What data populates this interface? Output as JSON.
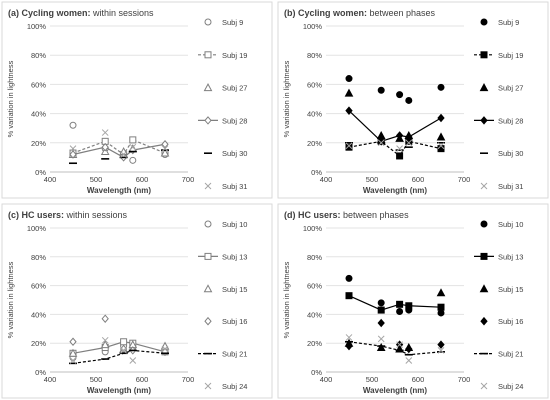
{
  "panels": [
    {
      "title_bold": "(a) Cycling women:",
      "title_rest": " within sessions"
    },
    {
      "title_bold": "(b) Cycling women:",
      "title_rest": " between phases"
    },
    {
      "title_bold": "(c) HC users:",
      "title_rest": "  within sessions"
    },
    {
      "title_bold": "(d) HC users:",
      "title_rest": " between phases"
    }
  ],
  "chart_data": [
    {
      "type": "line",
      "title": "(a) Cycling women: within sessions",
      "xlabel": "Wavelength (nm)",
      "ylabel": "% variation in lightness",
      "xlim": [
        400,
        700
      ],
      "ylim": [
        0,
        100
      ],
      "xticks": [
        "400",
        "500",
        "600",
        "700"
      ],
      "yticks": [
        "0%",
        "20%",
        "40%",
        "60%",
        "80%",
        "100%"
      ],
      "grid": "horizontal",
      "legend_position": "right",
      "series": [
        {
          "name": "Subj 9",
          "marker": "circle-open",
          "line": "none",
          "x": [
            450,
            520,
            560,
            580,
            650
          ],
          "y": [
            32,
            16,
            11,
            8,
            12
          ]
        },
        {
          "name": "Subj 19",
          "marker": "square-open",
          "line": "dashed",
          "x": [
            450,
            520,
            560,
            580,
            650
          ],
          "y": [
            13,
            21,
            12,
            22,
            13
          ]
        },
        {
          "name": "Subj 27",
          "marker": "triangle-open",
          "line": "none",
          "x": [
            450,
            520,
            560,
            580,
            650
          ],
          "y": [
            12,
            14,
            14,
            16,
            13
          ]
        },
        {
          "name": "Subj 28",
          "marker": "diamond-open",
          "line": "solid",
          "x": [
            450,
            520,
            560,
            580,
            650
          ],
          "y": [
            12,
            17,
            10,
            15,
            19
          ]
        },
        {
          "name": "Subj 30",
          "marker": "dash",
          "line": "none",
          "x": [
            450,
            520,
            560,
            580,
            650
          ],
          "y": [
            6,
            9,
            10,
            14,
            15
          ]
        },
        {
          "name": "Subj 31",
          "marker": "cross",
          "line": "none",
          "x": [
            450,
            520,
            560,
            580,
            650
          ],
          "y": [
            16,
            27,
            12,
            17,
            16
          ]
        }
      ]
    },
    {
      "type": "line",
      "title": "(b) Cycling women: between phases",
      "xlabel": "Wavelength (nm)",
      "ylabel": "% variation in lightness",
      "xlim": [
        400,
        700
      ],
      "ylim": [
        0,
        100
      ],
      "xticks": [
        "400",
        "500",
        "600",
        "700"
      ],
      "yticks": [
        "0%",
        "20%",
        "40%",
        "60%",
        "80%",
        "100%"
      ],
      "grid": "horizontal",
      "legend_position": "right",
      "series": [
        {
          "name": "Subj 9",
          "marker": "circle",
          "line": "none",
          "x": [
            450,
            520,
            560,
            580,
            650
          ],
          "y": [
            64,
            56,
            53,
            49,
            58
          ]
        },
        {
          "name": "Subj 19",
          "marker": "square",
          "line": "dashed",
          "x": [
            450,
            520,
            560,
            580,
            650
          ],
          "y": [
            17,
            21,
            11,
            21,
            16
          ]
        },
        {
          "name": "Subj 27",
          "marker": "triangle",
          "line": "none",
          "x": [
            450,
            520,
            560,
            580,
            650
          ],
          "y": [
            54,
            25,
            23,
            25,
            24
          ]
        },
        {
          "name": "Subj 28",
          "marker": "diamond",
          "line": "solid",
          "x": [
            450,
            520,
            560,
            580,
            650
          ],
          "y": [
            42,
            21,
            25,
            24,
            37
          ]
        },
        {
          "name": "Subj 30",
          "marker": "dash",
          "line": "none",
          "x": [
            450,
            520,
            560,
            580,
            650
          ],
          "y": [
            20,
            20,
            15,
            17,
            20
          ]
        },
        {
          "name": "Subj 31",
          "marker": "cross",
          "line": "none",
          "x": [
            450,
            520,
            560,
            580,
            650
          ],
          "y": [
            18,
            20,
            16,
            20,
            18
          ]
        }
      ]
    },
    {
      "type": "line",
      "title": "(c) HC users: within sessions",
      "xlabel": "Wavelength (nm)",
      "ylabel": "% variation in lightness",
      "xlim": [
        400,
        700
      ],
      "ylim": [
        0,
        100
      ],
      "xticks": [
        "400",
        "500",
        "600",
        "700"
      ],
      "yticks": [
        "0%",
        "20%",
        "40%",
        "60%",
        "80%",
        "100%"
      ],
      "grid": "horizontal",
      "legend_position": "right",
      "series": [
        {
          "name": "Subj 10",
          "marker": "circle-open",
          "line": "none",
          "x": [
            450,
            520,
            560,
            580,
            650
          ],
          "y": [
            10,
            14,
            18,
            17,
            16
          ]
        },
        {
          "name": "Subj 13",
          "marker": "square-open",
          "line": "solid",
          "x": [
            450,
            520,
            560,
            580,
            650
          ],
          "y": [
            13,
            17,
            21,
            20,
            14
          ]
        },
        {
          "name": "Subj 15",
          "marker": "triangle-open",
          "line": "none",
          "x": [
            450,
            520,
            560,
            580,
            650
          ],
          "y": [
            13,
            19,
            16,
            19,
            18
          ]
        },
        {
          "name": "Subj 16",
          "marker": "diamond-open",
          "line": "none",
          "x": [
            450,
            520,
            560,
            580,
            650
          ],
          "y": [
            21,
            37,
            16,
            15,
            14
          ]
        },
        {
          "name": "Subj 21",
          "marker": "dash",
          "line": "dashed",
          "x": [
            450,
            520,
            560,
            580,
            650
          ],
          "y": [
            6,
            9,
            13,
            15,
            13
          ]
        },
        {
          "name": "Subj 24",
          "marker": "cross",
          "line": "none",
          "x": [
            450,
            520,
            560,
            580,
            650
          ],
          "y": [
            8,
            22,
            15,
            8,
            16
          ]
        }
      ]
    },
    {
      "type": "line",
      "title": "(d) HC users: between phases",
      "xlabel": "Wavelength (nm)",
      "ylabel": "% variation in lightness",
      "xlim": [
        400,
        700
      ],
      "ylim": [
        0,
        100
      ],
      "xticks": [
        "400",
        "500",
        "600",
        "700"
      ],
      "yticks": [
        "0%",
        "20%",
        "40%",
        "60%",
        "80%",
        "100%"
      ],
      "grid": "horizontal",
      "legend_position": "right",
      "series": [
        {
          "name": "Subj 10",
          "marker": "circle",
          "line": "none",
          "x": [
            450,
            520,
            560,
            580,
            650
          ],
          "y": [
            65,
            48,
            42,
            43,
            41
          ]
        },
        {
          "name": "Subj 13",
          "marker": "square",
          "line": "solid",
          "x": [
            450,
            520,
            560,
            580,
            650
          ],
          "y": [
            53,
            43,
            47,
            46,
            45
          ]
        },
        {
          "name": "Subj 15",
          "marker": "triangle",
          "line": "none",
          "x": [
            450,
            520,
            560,
            580,
            650
          ],
          "y": [
            20,
            17,
            16,
            17,
            55
          ]
        },
        {
          "name": "Subj 16",
          "marker": "diamond",
          "line": "none",
          "x": [
            450,
            520,
            560,
            580,
            650
          ],
          "y": [
            18,
            34,
            19,
            16,
            19
          ]
        },
        {
          "name": "Subj 21",
          "marker": "dash",
          "line": "dashed",
          "x": [
            450,
            520,
            560,
            580,
            650
          ],
          "y": [
            21,
            18,
            15,
            12,
            14
          ]
        },
        {
          "name": "Subj 24",
          "marker": "cross",
          "line": "none",
          "x": [
            450,
            520,
            560,
            580,
            650
          ],
          "y": [
            24,
            23,
            19,
            8,
            15
          ]
        }
      ]
    }
  ]
}
